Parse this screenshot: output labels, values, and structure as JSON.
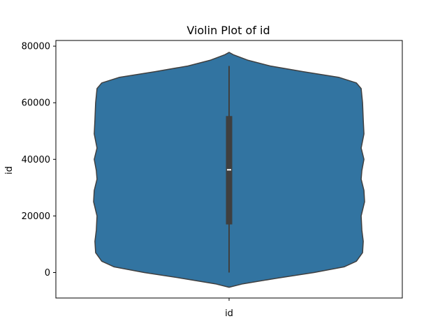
{
  "chart_data": {
    "type": "violin",
    "title": "Violin Plot of id",
    "xlabel": "",
    "ylabel": "id",
    "categories": [
      "id"
    ],
    "ylim": [
      -9000,
      82000
    ],
    "yticks": [
      0,
      20000,
      40000,
      60000,
      80000
    ],
    "ytick_labels": [
      "0",
      "20000",
      "40000",
      "60000",
      "80000"
    ],
    "box": {
      "whisker_low": 0,
      "q1": 17000,
      "median": 36300,
      "q3": 55300,
      "whisker_high": 73000
    },
    "density_profile": [
      {
        "y": -5200,
        "width": 0.0
      },
      {
        "y": -4000,
        "width": 0.1
      },
      {
        "y": -2000,
        "width": 0.35
      },
      {
        "y": 0,
        "width": 0.62
      },
      {
        "y": 2000,
        "width": 0.84
      },
      {
        "y": 4000,
        "width": 0.93
      },
      {
        "y": 7000,
        "width": 0.975
      },
      {
        "y": 11000,
        "width": 0.98
      },
      {
        "y": 15000,
        "width": 0.97
      },
      {
        "y": 20000,
        "width": 0.965
      },
      {
        "y": 25000,
        "width": 0.99
      },
      {
        "y": 29000,
        "width": 0.985
      },
      {
        "y": 33000,
        "width": 0.965
      },
      {
        "y": 36000,
        "width": 0.97
      },
      {
        "y": 40000,
        "width": 0.985
      },
      {
        "y": 44000,
        "width": 0.965
      },
      {
        "y": 49000,
        "width": 0.985
      },
      {
        "y": 54000,
        "width": 0.98
      },
      {
        "y": 60000,
        "width": 0.975
      },
      {
        "y": 65000,
        "width": 0.965
      },
      {
        "y": 67000,
        "width": 0.93
      },
      {
        "y": 69000,
        "width": 0.8
      },
      {
        "y": 71000,
        "width": 0.54
      },
      {
        "y": 73000,
        "width": 0.3
      },
      {
        "y": 75000,
        "width": 0.14
      },
      {
        "y": 77000,
        "width": 0.03
      },
      {
        "y": 77800,
        "width": 0.0
      }
    ],
    "grid": false,
    "colors": {
      "violin_fill": "#3274a1",
      "violin_edge": "#3f3f3f",
      "box": "#3f3f3f",
      "median": "#ffffff"
    }
  }
}
